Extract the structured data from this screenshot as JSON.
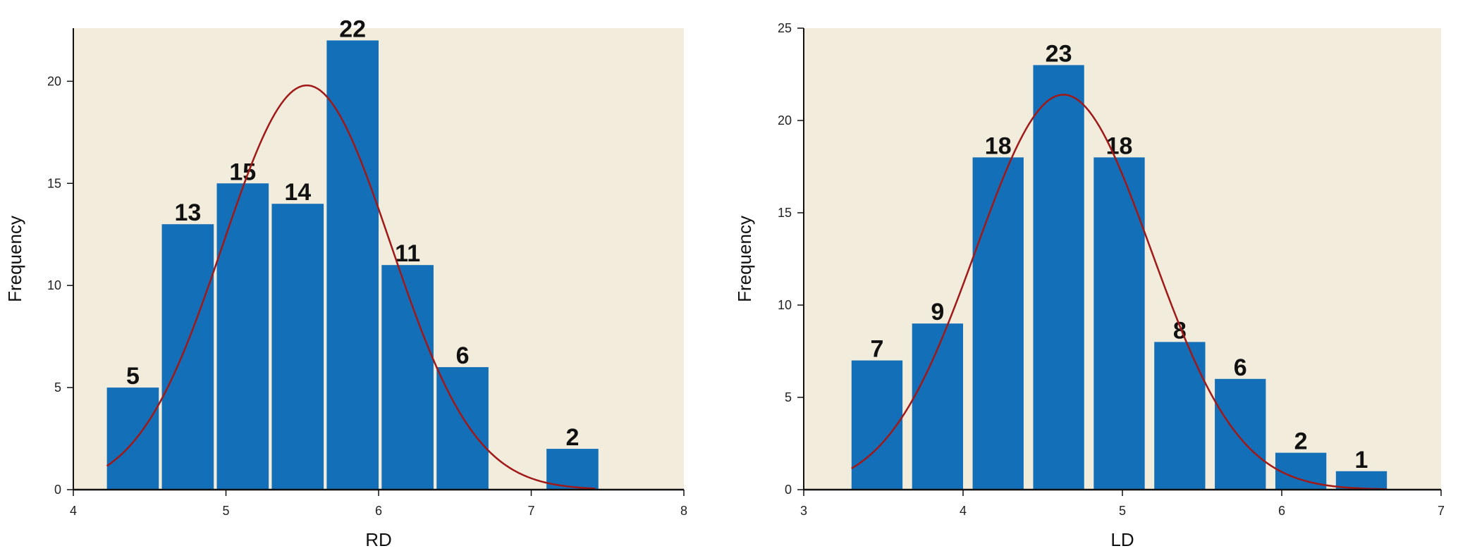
{
  "colors": {
    "plot_background": "#f1ecdb",
    "bar": "#1370b8",
    "curve": "#a01818",
    "axis": "#111111"
  },
  "chart_data": [
    {
      "type": "bar",
      "xlabel": "RD",
      "ylabel": "Frequency",
      "xlim": [
        4,
        8
      ],
      "ylim": [
        0,
        22.6
      ],
      "x_ticks": [
        4,
        5,
        6,
        7,
        8
      ],
      "y_ticks": [
        0,
        5,
        10,
        15,
        20
      ],
      "bins": [
        {
          "start": 4.22,
          "end": 4.56,
          "value": 5
        },
        {
          "start": 4.58,
          "end": 4.92,
          "value": 13
        },
        {
          "start": 4.94,
          "end": 5.28,
          "value": 15
        },
        {
          "start": 5.3,
          "end": 5.64,
          "value": 14
        },
        {
          "start": 5.66,
          "end": 6.0,
          "value": 22
        },
        {
          "start": 6.02,
          "end": 6.36,
          "value": 11
        },
        {
          "start": 6.38,
          "end": 6.72,
          "value": 6
        },
        {
          "start": 7.1,
          "end": 7.44,
          "value": 2
        }
      ],
      "bar_labels": [
        "5",
        "13",
        "15",
        "14",
        "22",
        "11",
        "6",
        "2"
      ],
      "normal_curve": {
        "mean": 5.53,
        "sd": 0.55,
        "peak": 19.8,
        "x_range": [
          4.22,
          7.42
        ]
      },
      "grid": false,
      "legend": "none"
    },
    {
      "type": "bar",
      "xlabel": "LD",
      "ylabel": "Frequency",
      "xlim": [
        3,
        7
      ],
      "ylim": [
        0,
        25
      ],
      "x_ticks": [
        3,
        4,
        5,
        6,
        7
      ],
      "y_ticks": [
        0,
        5,
        10,
        15,
        20,
        25
      ],
      "bins": [
        {
          "start": 3.3,
          "end": 3.62,
          "value": 7
        },
        {
          "start": 3.68,
          "end": 4.0,
          "value": 9
        },
        {
          "start": 4.06,
          "end": 4.38,
          "value": 18
        },
        {
          "start": 4.44,
          "end": 4.76,
          "value": 23
        },
        {
          "start": 4.82,
          "end": 5.14,
          "value": 18
        },
        {
          "start": 5.2,
          "end": 5.52,
          "value": 8
        },
        {
          "start": 5.58,
          "end": 5.9,
          "value": 6
        },
        {
          "start": 5.96,
          "end": 6.28,
          "value": 2
        },
        {
          "start": 6.34,
          "end": 6.66,
          "value": 1
        }
      ],
      "bar_labels": [
        "7",
        "9",
        "18",
        "23",
        "18",
        "8",
        "6",
        "2",
        "1"
      ],
      "normal_curve": {
        "mean": 4.63,
        "sd": 0.55,
        "peak": 21.4,
        "x_range": [
          3.3,
          6.66
        ]
      },
      "grid": false,
      "legend": "none"
    }
  ]
}
